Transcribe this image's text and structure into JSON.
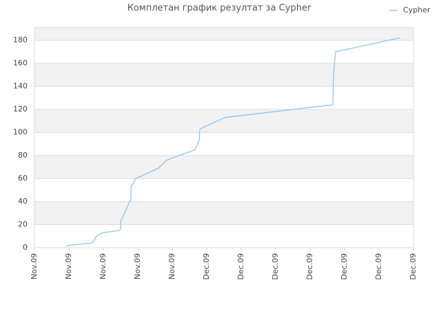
{
  "chart_data": {
    "type": "line",
    "title": "Комплетан график резултат за Cypher",
    "x": [
      0.92,
      1,
      1.3,
      1.66,
      1.72,
      1.8,
      1.9,
      2,
      2.46,
      2.5,
      2.5,
      2.6,
      2.66,
      2.76,
      2.8,
      2.8,
      2.86,
      2.94,
      3.6,
      3.84,
      4.66,
      4.78,
      4.8,
      5.54,
      8.66,
      8.68,
      8.74,
      10.6
    ],
    "series": [
      {
        "name": "Cypher",
        "color": "#8ec4ee",
        "values": [
          1,
          2,
          3,
          4,
          6,
          10,
          12,
          13,
          15,
          16,
          23,
          29,
          33,
          40,
          42,
          53,
          55,
          60,
          69,
          76,
          85,
          93,
          103,
          113,
          124,
          150,
          170,
          182
        ]
      }
    ],
    "xlim": [
      0,
      11
    ],
    "xticks": [
      {
        "value": 0,
        "label": "Nov.09"
      },
      {
        "value": 1,
        "label": "Nov.09"
      },
      {
        "value": 2,
        "label": "Nov.09"
      },
      {
        "value": 3,
        "label": "Nov.09"
      },
      {
        "value": 4,
        "label": "Nov.09"
      },
      {
        "value": 5,
        "label": "Dec.09"
      },
      {
        "value": 6,
        "label": "Dec.09"
      },
      {
        "value": 7,
        "label": "Dec.09"
      },
      {
        "value": 8,
        "label": "Dec.09"
      },
      {
        "value": 9,
        "label": "Dec.09"
      },
      {
        "value": 10,
        "label": "Dec.09"
      },
      {
        "value": 11,
        "label": "Dec.09"
      }
    ],
    "ylim": [
      0,
      191
    ],
    "yticks": [
      0,
      20,
      40,
      60,
      80,
      100,
      120,
      140,
      160,
      180
    ],
    "grid": true,
    "legend": "top-right"
  }
}
